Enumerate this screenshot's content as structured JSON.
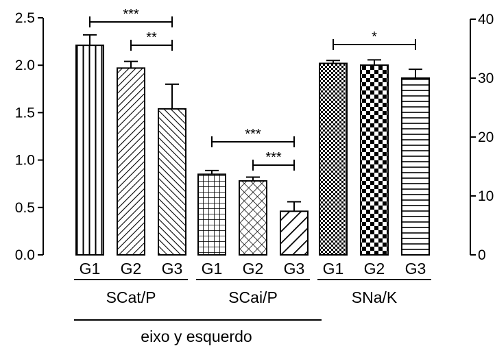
{
  "chart_data": {
    "type": "bar",
    "left_axis": {
      "ticks": [
        "0.0",
        "0.5",
        "1.0",
        "1.5",
        "2.0",
        "2.5"
      ],
      "ylim": [
        0,
        2.5
      ]
    },
    "right_axis": {
      "ticks": [
        "0",
        "10",
        "20",
        "30",
        "40"
      ],
      "ylim": [
        0,
        40
      ]
    },
    "groups": [
      {
        "label": "SCat/P",
        "axis": "left",
        "categories": [
          "G1",
          "G2",
          "G3"
        ],
        "values": [
          2.21,
          1.97,
          1.54
        ],
        "errors": [
          0.11,
          0.07,
          0.26
        ],
        "patterns": [
          "vlines",
          "diag-right",
          "diag-left"
        ],
        "significance": [
          {
            "from": 0,
            "to": 2,
            "label": "***"
          },
          {
            "from": 1,
            "to": 2,
            "label": "**"
          }
        ]
      },
      {
        "label": "SCai/P",
        "axis": "left",
        "categories": [
          "G1",
          "G2",
          "G3"
        ],
        "values": [
          0.85,
          0.78,
          0.46
        ],
        "errors": [
          0.04,
          0.04,
          0.1
        ],
        "patterns": [
          "grid",
          "crosshatch-diag",
          "wide-diag"
        ],
        "significance": [
          {
            "from": 0,
            "to": 2,
            "label": "***"
          },
          {
            "from": 1,
            "to": 2,
            "label": "***"
          }
        ]
      },
      {
        "label": "SNa/K",
        "axis": "right",
        "categories": [
          "G1",
          "G2",
          "G3"
        ],
        "values": [
          32.5,
          32.2,
          30.0
        ],
        "errors": [
          0.5,
          0.9,
          1.5
        ],
        "patterns": [
          "fine-check",
          "check",
          "hlines"
        ],
        "significance": [
          {
            "from": 0,
            "to": 2,
            "label": "*"
          }
        ]
      }
    ],
    "bottom_label": "eixo y esquerdo"
  }
}
